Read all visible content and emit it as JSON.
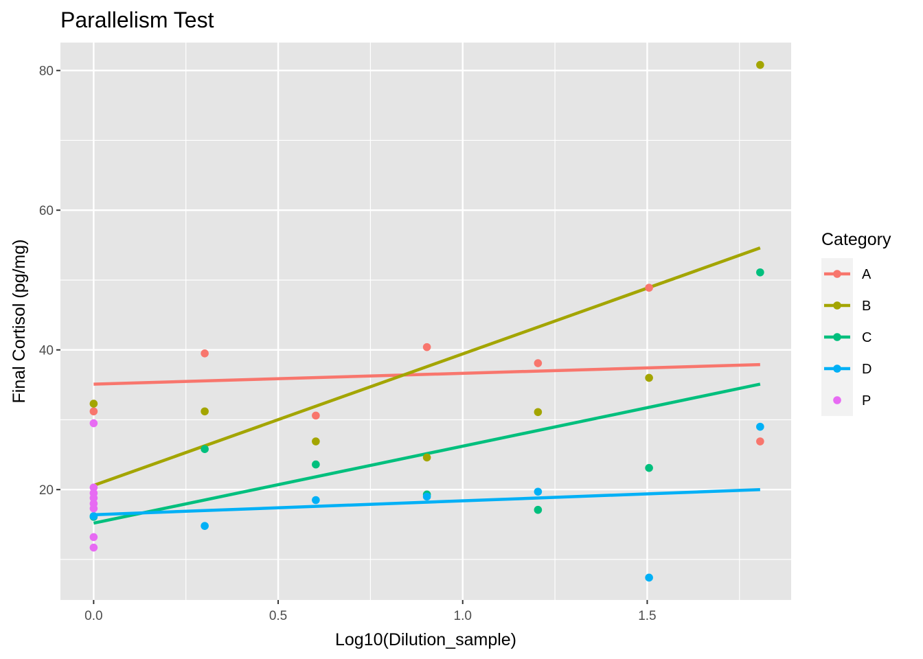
{
  "chart_data": {
    "type": "scatter",
    "title": "Parallelism Test",
    "xlabel": "Log10(Dilution_sample)",
    "ylabel": "Final Cortisol (pg/mg)",
    "xlim": [
      -0.09,
      1.89
    ],
    "ylim": [
      4.2,
      84
    ],
    "x_ticks": [
      0.0,
      0.5,
      1.0,
      1.5
    ],
    "x_tick_labels": [
      "0.0",
      "0.5",
      "1.0",
      "1.5"
    ],
    "y_ticks": [
      20,
      40,
      60,
      80
    ],
    "y_tick_labels": [
      "20",
      "40",
      "60",
      "80"
    ],
    "x_minor": [
      0.25,
      0.75,
      1.25,
      1.75
    ],
    "y_minor": [
      10,
      30,
      50,
      70
    ],
    "grid": true,
    "background": "#e5e5e5",
    "legend": {
      "title": "Category",
      "position": "right",
      "entries": [
        {
          "label": "A",
          "color": "#F8766D",
          "line": true
        },
        {
          "label": "B",
          "color": "#A3A500",
          "line": true
        },
        {
          "label": "C",
          "color": "#00BF7D",
          "line": true
        },
        {
          "label": "D",
          "color": "#00B0F6",
          "line": true
        },
        {
          "label": "P",
          "color": "#E76BF3",
          "line": false
        }
      ]
    },
    "series": [
      {
        "name": "A",
        "color": "#F8766D",
        "points": [
          [
            0.0,
            31.2
          ],
          [
            0.301,
            39.5
          ],
          [
            0.602,
            30.6
          ],
          [
            0.903,
            40.4
          ],
          [
            1.204,
            38.1
          ],
          [
            1.505,
            48.9
          ],
          [
            1.806,
            26.9
          ]
        ],
        "fit": [
          [
            0.0,
            35.1
          ],
          [
            1.806,
            37.9
          ]
        ]
      },
      {
        "name": "B",
        "color": "#A3A500",
        "points": [
          [
            0.0,
            32.3
          ],
          [
            0.301,
            31.2
          ],
          [
            0.602,
            26.9
          ],
          [
            0.903,
            24.6
          ],
          [
            1.204,
            31.1
          ],
          [
            1.505,
            36.0
          ],
          [
            1.806,
            80.8
          ]
        ],
        "fit": [
          [
            0.0,
            20.6
          ],
          [
            1.806,
            54.6
          ]
        ]
      },
      {
        "name": "C",
        "color": "#00BF7D",
        "points": [
          [
            0.0,
            16.1
          ],
          [
            0.301,
            25.8
          ],
          [
            0.602,
            23.6
          ],
          [
            0.903,
            19.3
          ],
          [
            1.204,
            17.1
          ],
          [
            1.505,
            23.1
          ],
          [
            1.806,
            51.1
          ]
        ],
        "fit": [
          [
            0.0,
            15.2
          ],
          [
            1.806,
            35.1
          ]
        ]
      },
      {
        "name": "D",
        "color": "#00B0F6",
        "points": [
          [
            0.0,
            16.2
          ],
          [
            0.301,
            14.8
          ],
          [
            0.602,
            18.5
          ],
          [
            0.903,
            19.0
          ],
          [
            1.204,
            19.7
          ],
          [
            1.505,
            7.4
          ],
          [
            1.806,
            29.0
          ]
        ],
        "fit": [
          [
            0.0,
            16.4
          ],
          [
            1.806,
            20.0
          ]
        ]
      },
      {
        "name": "P",
        "color": "#E76BF3",
        "points": [
          [
            0.0,
            29.5
          ],
          [
            0.0,
            20.3
          ],
          [
            0.0,
            19.5
          ],
          [
            0.0,
            18.8
          ],
          [
            0.0,
            18.0
          ],
          [
            0.0,
            17.3
          ],
          [
            0.0,
            13.2
          ],
          [
            0.0,
            11.7
          ]
        ]
      }
    ]
  }
}
